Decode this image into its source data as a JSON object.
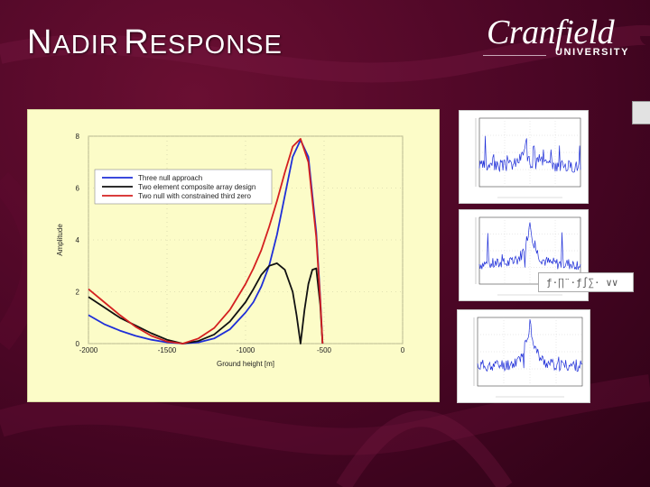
{
  "slide": {
    "title_first_cap": "N",
    "title_first_rest": "ADIR",
    "title_second_cap": "R",
    "title_second_rest": "ESPONSE",
    "logo_name": "Cranfield",
    "logo_subtitle": "UNIVERSITY",
    "background_color": "#4a0625",
    "popup_text": "ƒ·∏¨·ƒ∫∑· ∨∨"
  },
  "chart_data": {
    "type": "line",
    "xlabel": "Ground height [m]",
    "ylabel": "Amplitude",
    "xlim": [
      -2000,
      0
    ],
    "ylim": [
      0,
      8
    ],
    "x_ticks": [
      -2000,
      -1500,
      -1000,
      -500,
      0
    ],
    "y_ticks": [
      0,
      2,
      4,
      6,
      8
    ],
    "grid": true,
    "legend_position": "top-left",
    "series": [
      {
        "name": "Three null approach",
        "color": "#1f2fd8",
        "x": [
          -2000,
          -1900,
          -1800,
          -1700,
          -1600,
          -1500,
          -1400,
          -1300,
          -1200,
          -1100,
          -1000,
          -950,
          -900,
          -850,
          -800,
          -750,
          -700,
          -650,
          -600,
          -550,
          -525,
          -510
        ],
        "y": [
          1.1,
          0.75,
          0.5,
          0.3,
          0.15,
          0.05,
          0.0,
          0.05,
          0.2,
          0.55,
          1.2,
          1.6,
          2.2,
          3.0,
          4.2,
          5.7,
          7.2,
          7.85,
          7.2,
          4.3,
          1.8,
          0.0
        ]
      },
      {
        "name": "Two element composite array design",
        "color": "#111111",
        "x": [
          -2000,
          -1900,
          -1800,
          -1700,
          -1600,
          -1500,
          -1400,
          -1300,
          -1200,
          -1100,
          -1000,
          -950,
          -900,
          -850,
          -800,
          -750,
          -700,
          -675,
          -650,
          -625,
          -600,
          -575,
          -550,
          -525,
          -510
        ],
        "y": [
          1.8,
          1.4,
          1.0,
          0.7,
          0.4,
          0.15,
          0.0,
          0.1,
          0.35,
          0.85,
          1.6,
          2.1,
          2.65,
          3.0,
          3.1,
          2.85,
          2.0,
          1.1,
          0.0,
          1.3,
          2.3,
          2.85,
          2.9,
          1.5,
          0.0
        ]
      },
      {
        "name": "Two null with constrained third zero",
        "color": "#d42020",
        "x": [
          -2000,
          -1900,
          -1800,
          -1700,
          -1600,
          -1500,
          -1400,
          -1300,
          -1200,
          -1100,
          -1000,
          -950,
          -900,
          -850,
          -800,
          -750,
          -700,
          -650,
          -600,
          -550,
          -525,
          -510
        ],
        "y": [
          2.1,
          1.6,
          1.1,
          0.65,
          0.3,
          0.08,
          0.0,
          0.2,
          0.6,
          1.3,
          2.3,
          2.9,
          3.6,
          4.5,
          5.5,
          6.6,
          7.6,
          7.9,
          7.0,
          4.1,
          1.7,
          0.0
        ]
      }
    ]
  }
}
